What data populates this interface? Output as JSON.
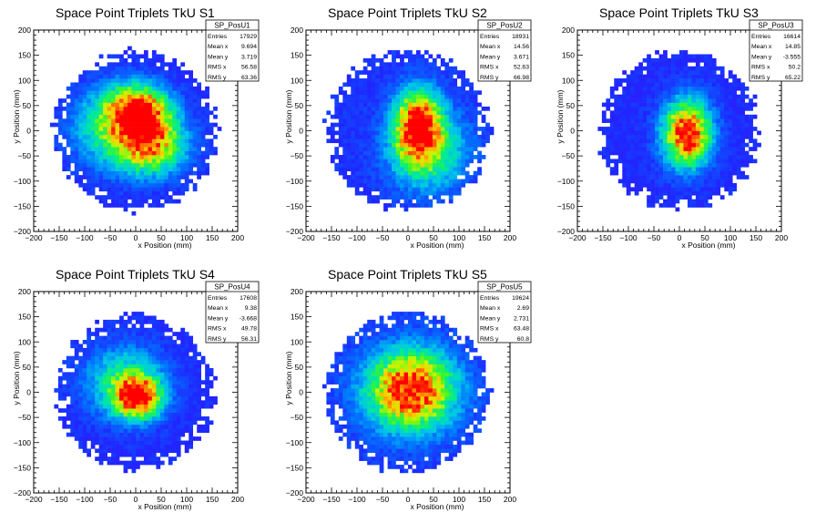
{
  "chart_data": [
    {
      "type": "heatmap",
      "title": "Space Point Triplets TkU S1",
      "xlabel": "x Position (mm)",
      "ylabel": "y Position (mm)",
      "xlim": [
        -200,
        200
      ],
      "ylim": [
        -200,
        200
      ],
      "xticks": [
        "−200",
        "−150",
        "−100",
        "−50",
        "0",
        "50",
        "100",
        "150",
        "200"
      ],
      "yticks": [
        "−200",
        "−150",
        "−100",
        "−50",
        "0",
        "50",
        "100",
        "150",
        "200"
      ],
      "radius": 160,
      "stats": {
        "name": "SP_PosU1",
        "rows": [
          {
            "label": "Entries",
            "value": "17929"
          },
          {
            "label": "Mean x",
            "value": "9.694"
          },
          {
            "label": "Mean y",
            "value": "3.719"
          },
          {
            "label": "RMS x",
            "value": "56.58"
          },
          {
            "label": "RMS y",
            "value": "63.36"
          }
        ]
      },
      "peaks": [
        {
          "x": 5,
          "y": 40,
          "amp": 1.0,
          "sx": 38,
          "sy": 32
        },
        {
          "x": 25,
          "y": -25,
          "amp": 0.8,
          "sx": 45,
          "sy": 38
        },
        {
          "x": -50,
          "y": 10,
          "amp": 0.35,
          "sx": 50,
          "sy": 50
        }
      ],
      "base": 0.12
    },
    {
      "type": "heatmap",
      "title": "Space Point Triplets TkU S2",
      "xlabel": "x Position (mm)",
      "ylabel": "y Position (mm)",
      "xlim": [
        -200,
        200
      ],
      "ylim": [
        -200,
        200
      ],
      "xticks": [
        "−200",
        "−150",
        "−100",
        "−50",
        "0",
        "50",
        "100",
        "150",
        "200"
      ],
      "yticks": [
        "−200",
        "−150",
        "−100",
        "−50",
        "0",
        "50",
        "100",
        "150",
        "200"
      ],
      "radius": 160,
      "stats": {
        "name": "SP_PosU2",
        "rows": [
          {
            "label": "Entries",
            "value": "18931"
          },
          {
            "label": "Mean x",
            "value": "14.56"
          },
          {
            "label": "Mean y",
            "value": "3.671"
          },
          {
            "label": "RMS x",
            "value": "52.63"
          },
          {
            "label": "RMS y",
            "value": "66.98"
          }
        ]
      },
      "peaks": [
        {
          "x": 20,
          "y": 10,
          "amp": 1.0,
          "sx": 30,
          "sy": 45
        },
        {
          "x": 40,
          "y": -40,
          "amp": 0.4,
          "sx": 50,
          "sy": 50
        }
      ],
      "base": 0.13
    },
    {
      "type": "heatmap",
      "title": "Space Point Triplets TkU S3",
      "xlabel": "x Position (mm)",
      "ylabel": "y Position (mm)",
      "xlim": [
        -200,
        200
      ],
      "ylim": [
        -200,
        200
      ],
      "xticks": [
        "−200",
        "−150",
        "−100",
        "−50",
        "0",
        "50",
        "100",
        "150",
        "200"
      ],
      "yticks": [
        "−200",
        "−150",
        "−100",
        "−50",
        "0",
        "50",
        "100",
        "150",
        "200"
      ],
      "radius": 158,
      "stats": {
        "name": "SP_PosU3",
        "rows": [
          {
            "label": "Entries",
            "value": "16614"
          },
          {
            "label": "Mean x",
            "value": "14.85"
          },
          {
            "label": "Mean y",
            "value": "-3.555"
          },
          {
            "label": "RMS x",
            "value": "50.2"
          },
          {
            "label": "RMS y",
            "value": "65.22"
          }
        ]
      },
      "peaks": [
        {
          "x": 15,
          "y": -5,
          "amp": 1.0,
          "sx": 30,
          "sy": 42
        }
      ],
      "base": 0.12
    },
    {
      "type": "heatmap",
      "title": "Space Point Triplets TkU S4",
      "xlabel": "x Position (mm)",
      "ylabel": "y Position (mm)",
      "xlim": [
        -200,
        200
      ],
      "ylim": [
        -200,
        200
      ],
      "xticks": [
        "−200",
        "−150",
        "−100",
        "−50",
        "0",
        "50",
        "100",
        "150",
        "200"
      ],
      "yticks": [
        "−200",
        "−150",
        "−100",
        "−50",
        "0",
        "50",
        "100",
        "150",
        "200"
      ],
      "radius": 155,
      "stats": {
        "name": "SP_PosU4",
        "rows": [
          {
            "label": "Entries",
            "value": "17608"
          },
          {
            "label": "Mean x",
            "value": "9.38"
          },
          {
            "label": "Mean y",
            "value": "-3.668"
          },
          {
            "label": "RMS x",
            "value": "49.78"
          },
          {
            "label": "RMS y",
            "value": "56.31"
          }
        ]
      },
      "peaks": [
        {
          "x": 5,
          "y": -10,
          "amp": 1.0,
          "sx": 28,
          "sy": 26
        },
        {
          "x": -20,
          "y": 20,
          "amp": 0.4,
          "sx": 50,
          "sy": 45
        }
      ],
      "base": 0.12
    },
    {
      "type": "heatmap",
      "title": "Space Point Triplets TkU S5",
      "xlabel": "x Position (mm)",
      "ylabel": "y Position (mm)",
      "xlim": [
        -200,
        200
      ],
      "ylim": [
        -200,
        200
      ],
      "xticks": [
        "−200",
        "−150",
        "−100",
        "−50",
        "0",
        "50",
        "100",
        "150",
        "200"
      ],
      "yticks": [
        "−200",
        "−150",
        "−100",
        "−50",
        "0",
        "50",
        "100",
        "150",
        "200"
      ],
      "radius": 160,
      "stats": {
        "name": "SP_PosU5",
        "rows": [
          {
            "label": "Entries",
            "value": "19624"
          },
          {
            "label": "Mean x",
            "value": "2.69"
          },
          {
            "label": "Mean y",
            "value": "2.731"
          },
          {
            "label": "RMS x",
            "value": "63.48"
          },
          {
            "label": "RMS y",
            "value": "60.8"
          }
        ]
      },
      "peaks": [
        {
          "x": 5,
          "y": 5,
          "amp": 1.0,
          "sx": 55,
          "sy": 50
        }
      ],
      "base": 0.14
    }
  ],
  "colors": {
    "frame": "#000000",
    "background": "#ffffff"
  }
}
